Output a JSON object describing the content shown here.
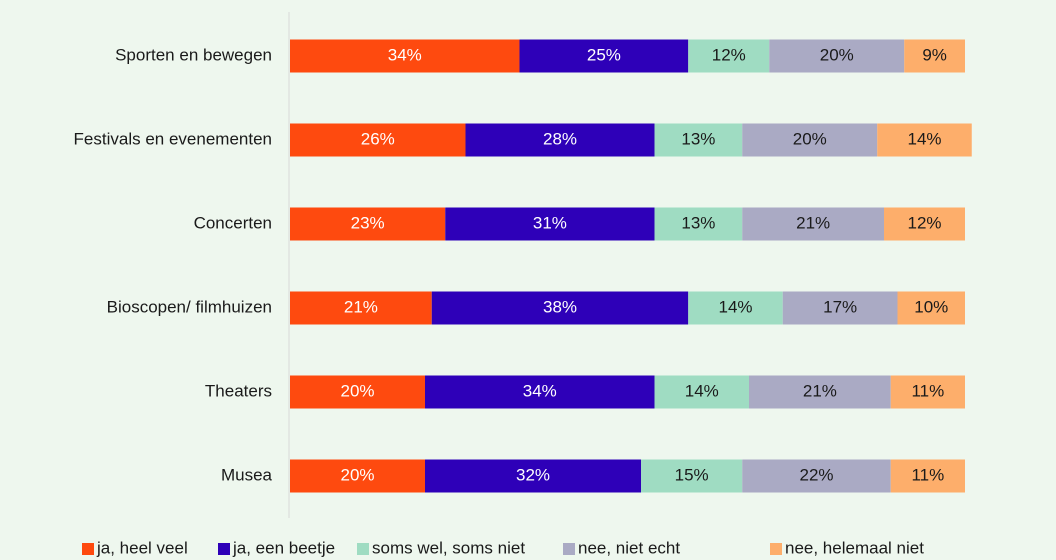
{
  "chart_data": {
    "type": "stacked_bar_horizontal",
    "categories": [
      "Sporten en bewegen",
      "Festivals en evenementen",
      "Concerten",
      "Bioscopen/ filmhuizen",
      "Theaters",
      "Musea"
    ],
    "series": [
      {
        "name": "ja, heel veel",
        "color": "#fe4a0f",
        "values": [
          34,
          26,
          23,
          21,
          20,
          20
        ],
        "value_labels": [
          "34%",
          "26%",
          "23%",
          "21%",
          "20%",
          "20%"
        ]
      },
      {
        "name": "ja, een beetje",
        "color": "#2e00b8",
        "values": [
          25,
          28,
          31,
          38,
          34,
          32
        ],
        "value_labels": [
          "25%",
          "28%",
          "31%",
          "38%",
          "34%",
          "32%"
        ]
      },
      {
        "name": "soms wel, soms niet",
        "color": "#9fdcc2",
        "values": [
          12,
          13,
          13,
          14,
          14,
          15
        ],
        "value_labels": [
          "12%",
          "13%",
          "13%",
          "14%",
          "14%",
          "15%"
        ]
      },
      {
        "name": "nee, niet echt",
        "color": "#aaaac4",
        "values": [
          20,
          20,
          21,
          17,
          21,
          22
        ],
        "value_labels": [
          "20%",
          "20%",
          "21%",
          "17%",
          "21%",
          "22%"
        ]
      },
      {
        "name": "nee, helemaal niet",
        "color": "#fdae6b",
        "values": [
          9,
          14,
          12,
          10,
          11,
          11
        ],
        "value_labels": [
          "9%",
          "14%",
          "12%",
          "10%",
          "11%",
          "11%"
        ]
      }
    ],
    "xlim": [
      0,
      100
    ],
    "legend": "bottom"
  }
}
